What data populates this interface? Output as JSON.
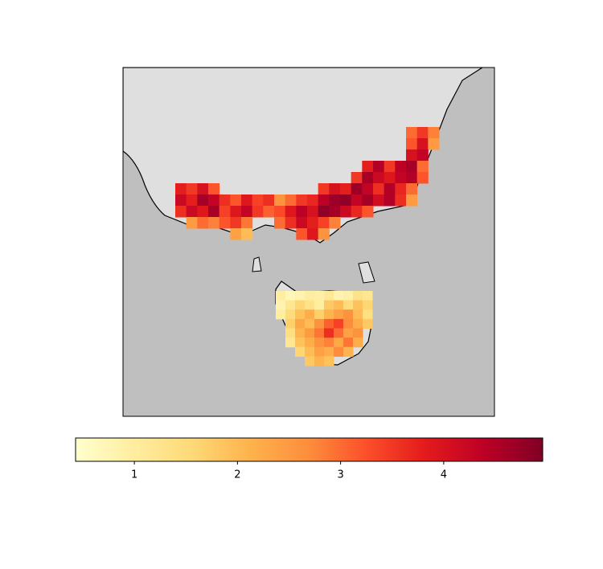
{
  "chart_data": {
    "type": "heatmap",
    "colormap": [
      "#ffffcc",
      "#ffeda0",
      "#fed976",
      "#feb24c",
      "#fd8d3c",
      "#fc4e2a",
      "#e31a1c",
      "#bd0026",
      "#800026"
    ],
    "clim": [
      0.43,
      4.96
    ],
    "cticks": [
      1,
      2,
      3,
      4
    ],
    "grids": [
      {
        "name": "mainland",
        "values": [
          [
            null,
            null,
            null,
            null,
            null,
            null,
            null,
            null,
            null,
            null,
            null,
            null,
            null,
            null,
            null,
            null,
            null,
            null,
            null,
            null,
            null,
            3.0,
            3.5,
            2.8
          ],
          [
            null,
            null,
            null,
            null,
            null,
            null,
            null,
            null,
            null,
            null,
            null,
            null,
            null,
            null,
            null,
            null,
            null,
            null,
            null,
            null,
            null,
            3.2,
            4.0,
            2.5
          ],
          [
            null,
            null,
            null,
            null,
            null,
            null,
            null,
            null,
            null,
            null,
            null,
            null,
            null,
            null,
            null,
            null,
            null,
            null,
            null,
            null,
            null,
            4.0,
            4.3,
            null
          ],
          [
            null,
            null,
            null,
            null,
            null,
            null,
            null,
            null,
            null,
            null,
            null,
            null,
            null,
            null,
            null,
            null,
            null,
            3.8,
            4.5,
            3.5,
            4.4,
            4.6,
            3.0,
            null
          ],
          [
            null,
            null,
            null,
            null,
            null,
            null,
            null,
            null,
            null,
            null,
            null,
            null,
            null,
            null,
            null,
            null,
            3.5,
            4.6,
            4.2,
            3.9,
            4.3,
            4.5,
            3.2,
            null
          ],
          [
            3.8,
            3.5,
            4.0,
            3.2,
            null,
            null,
            null,
            null,
            null,
            null,
            null,
            null,
            null,
            3.5,
            4.0,
            3.8,
            4.7,
            4.3,
            3.6,
            4.5,
            3.7,
            3.0,
            null,
            null
          ],
          [
            4.2,
            3.8,
            4.6,
            4.3,
            3.6,
            3.2,
            3.9,
            3.4,
            3.6,
            2.6,
            3.0,
            3.5,
            3.7,
            4.4,
            4.7,
            4.8,
            4.3,
            4.6,
            4.1,
            4.5,
            3.6,
            2.5,
            null,
            null
          ],
          [
            3.6,
            4.2,
            3.9,
            4.6,
            3.4,
            3.9,
            4.3,
            3.5,
            3.1,
            3.3,
            3.9,
            4.4,
            4.0,
            4.8,
            4.6,
            4.2,
            3.7,
            3.2,
            null,
            null,
            null,
            null,
            null,
            null
          ],
          [
            null,
            2.5,
            3.0,
            2.8,
            3.2,
            3.5,
            2.9,
            null,
            null,
            3.0,
            3.6,
            4.2,
            3.8,
            3.4,
            2.8,
            null,
            null,
            null,
            null,
            null,
            null,
            null,
            null,
            null
          ],
          [
            null,
            null,
            null,
            null,
            null,
            2.4,
            2.0,
            null,
            null,
            null,
            null,
            3.2,
            3.9,
            2.6,
            null,
            null,
            null,
            null,
            null,
            null,
            null,
            null,
            null,
            null
          ]
        ]
      },
      {
        "name": "tasmania",
        "values": [
          [
            1.0,
            0.7,
            0.8,
            1.0,
            0.9,
            1.1,
            0.8,
            0.9,
            1.3,
            1.2
          ],
          [
            0.8,
            1.2,
            1.6,
            1.3,
            1.0,
            1.8,
            2.0,
            1.5,
            1.9,
            1.6
          ],
          [
            1.0,
            1.5,
            1.9,
            2.2,
            1.7,
            2.1,
            2.4,
            2.6,
            2.0,
            1.4
          ],
          [
            null,
            1.7,
            2.3,
            2.0,
            2.6,
            3.1,
            3.4,
            2.7,
            2.2,
            1.8
          ],
          [
            null,
            1.4,
            2.1,
            2.5,
            2.9,
            3.6,
            3.0,
            2.4,
            2.6,
            null
          ],
          [
            null,
            1.2,
            1.9,
            2.2,
            2.6,
            2.8,
            2.3,
            2.9,
            2.2,
            null
          ],
          [
            null,
            null,
            1.6,
            2.0,
            2.4,
            2.2,
            2.7,
            2.1,
            null,
            null
          ],
          [
            null,
            null,
            null,
            1.8,
            2.1,
            1.9,
            null,
            null,
            null,
            null
          ]
        ]
      }
    ]
  }
}
